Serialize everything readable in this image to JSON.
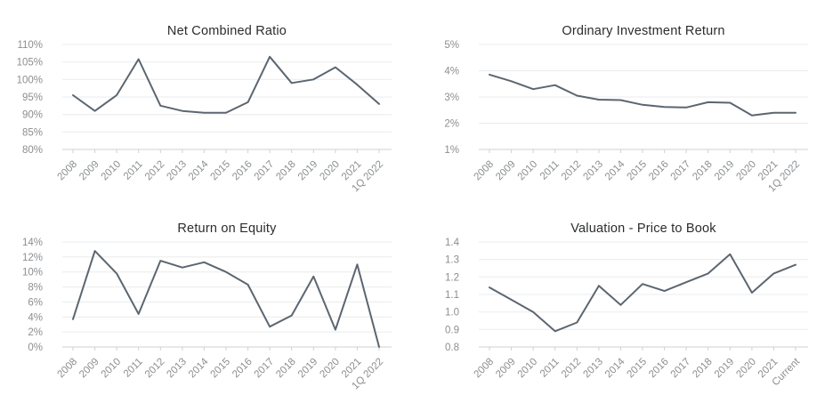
{
  "colors": {
    "line": "#5c6670",
    "grid": "#eaebec",
    "axis": "#cfd1d3",
    "tick_label": "#8b8e91",
    "title": "#2a2c2e",
    "background": "#ffffff"
  },
  "chart_data": [
    {
      "type": "line",
      "title": "Net Combined Ratio",
      "categories": [
        "2008",
        "2009",
        "2010",
        "2011",
        "2012",
        "2013",
        "2014",
        "2015",
        "2016",
        "2017",
        "2018",
        "2019",
        "2020",
        "2021",
        "1Q 2022"
      ],
      "values": [
        95.5,
        91,
        95.5,
        105.8,
        92.5,
        91,
        90.5,
        90.5,
        93.5,
        106.5,
        99,
        100,
        103.5,
        98.5,
        93
      ],
      "xlabel": "",
      "ylabel": "",
      "ylim": [
        80,
        110
      ],
      "y_ticks": [
        80,
        85,
        90,
        95,
        100,
        105,
        110
      ],
      "y_tick_labels": [
        "80%",
        "85%",
        "90%",
        "95%",
        "100%",
        "105%",
        "110%"
      ],
      "grid": true,
      "legend": "none"
    },
    {
      "type": "line",
      "title": "Ordinary Investment Return",
      "categories": [
        "2008",
        "2009",
        "2010",
        "2011",
        "2012",
        "2013",
        "2014",
        "2015",
        "2016",
        "2017",
        "2018",
        "2019",
        "2020",
        "2021",
        "1Q 2022"
      ],
      "values": [
        3.85,
        3.6,
        3.3,
        3.45,
        3.05,
        2.9,
        2.88,
        2.7,
        2.62,
        2.6,
        2.8,
        2.78,
        2.3,
        2.4,
        2.4
      ],
      "xlabel": "",
      "ylabel": "",
      "ylim": [
        1,
        5
      ],
      "y_ticks": [
        1,
        2,
        3,
        4,
        5
      ],
      "y_tick_labels": [
        "1%",
        "2%",
        "3%",
        "4%",
        "5%"
      ],
      "grid": true,
      "legend": "none"
    },
    {
      "type": "line",
      "title": "Return on Equity",
      "categories": [
        "2008",
        "2009",
        "2010",
        "2011",
        "2012",
        "2013",
        "2014",
        "2015",
        "2016",
        "2017",
        "2018",
        "2019",
        "2020",
        "2021",
        "1Q 2022"
      ],
      "values": [
        3.7,
        12.8,
        9.8,
        4.4,
        11.5,
        10.6,
        11.3,
        10,
        8.3,
        2.7,
        4.2,
        9.4,
        2.3,
        11,
        0
      ],
      "xlabel": "",
      "ylabel": "",
      "ylim": [
        0,
        14
      ],
      "y_ticks": [
        0,
        2,
        4,
        6,
        8,
        10,
        12,
        14
      ],
      "y_tick_labels": [
        "0%",
        "2%",
        "4%",
        "6%",
        "8%",
        "10%",
        "12%",
        "14%"
      ],
      "grid": true,
      "legend": "none"
    },
    {
      "type": "line",
      "title": "Valuation - Price to Book",
      "categories": [
        "2008",
        "2009",
        "2010",
        "2011",
        "2012",
        "2013",
        "2014",
        "2015",
        "2016",
        "2017",
        "2018",
        "2019",
        "2020",
        "2021",
        "Current"
      ],
      "values": [
        1.14,
        1.07,
        1.0,
        0.89,
        0.94,
        1.15,
        1.04,
        1.16,
        1.12,
        1.17,
        1.22,
        1.33,
        1.11,
        1.22,
        1.27
      ],
      "xlabel": "",
      "ylabel": "",
      "ylim": [
        0.8,
        1.4
      ],
      "y_ticks": [
        0.8,
        0.9,
        1.0,
        1.1,
        1.2,
        1.3,
        1.4
      ],
      "y_tick_labels": [
        "0.8",
        "0.9",
        "1.0",
        "1.1",
        "1.2",
        "1.3",
        "1.4"
      ],
      "grid": true,
      "legend": "none"
    }
  ]
}
